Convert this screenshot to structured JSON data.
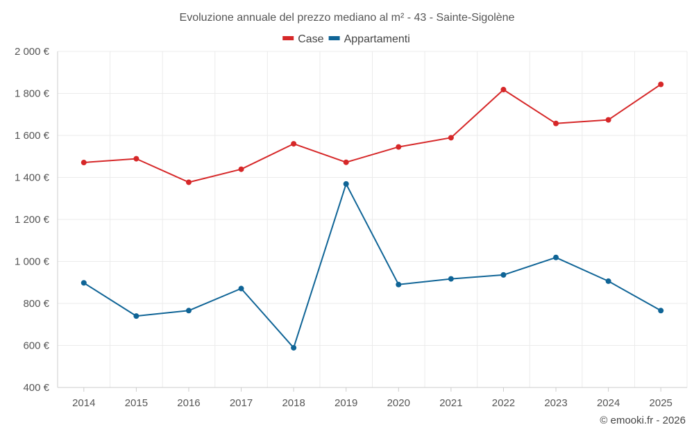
{
  "chart_data": {
    "type": "line",
    "title": "Evoluzione annuale del prezzo mediano al m² - 43 - Sainte-Sigolène",
    "categories": [
      "2014",
      "2015",
      "2016",
      "2017",
      "2018",
      "2019",
      "2020",
      "2021",
      "2022",
      "2023",
      "2024",
      "2025"
    ],
    "series": [
      {
        "name": "Case",
        "color": "#d62728",
        "values": [
          1471,
          1489,
          1377,
          1439,
          1560,
          1472,
          1545,
          1589,
          1818,
          1657,
          1674,
          1843
        ]
      },
      {
        "name": "Appartamenti",
        "color": "#0f6496",
        "values": [
          898,
          740,
          766,
          871,
          589,
          1369,
          890,
          917,
          936,
          1019,
          906,
          766
        ]
      }
    ],
    "ylim": [
      400,
      2000
    ],
    "yticks": [
      400,
      600,
      800,
      1000,
      1200,
      1400,
      1600,
      1800,
      2000
    ],
    "ytick_labels": [
      "400 €",
      "600 €",
      "800 €",
      "1 000 €",
      "1 200 €",
      "1 400 €",
      "1 600 €",
      "1 800 €",
      "2 000 €"
    ],
    "xlabel": "",
    "ylabel": "",
    "grid": true,
    "legend_position": "top-center"
  },
  "credit": "© emooki.fr - 2026"
}
